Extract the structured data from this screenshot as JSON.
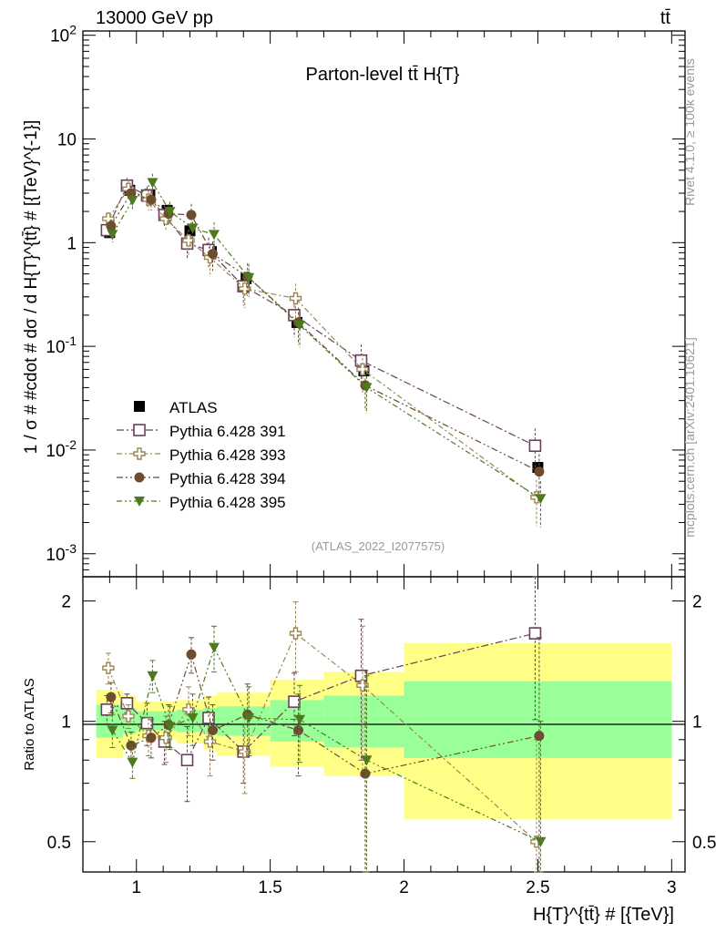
{
  "header": {
    "left": "13000 GeV pp",
    "right": "tt̄"
  },
  "side_labels": {
    "rivet": "Rivet 4.1.0, ≥ 100k events",
    "mcplots": "mcplots.cern.ch [arXiv:2401.10621]"
  },
  "chart_data": {
    "type": "scatter",
    "title": "Parton-level tt̄  H{T}",
    "analysis_tag": "(ATLAS_2022_I2077575)",
    "xlabel": "H{T}^{tt̄} # [{TeV}]",
    "ylabel": "1 / σ # #cdot # dσ / d H{T}^{tt̄} # [{TeV}^{-1}]",
    "ratio_ylabel": "Ratio to ATLAS",
    "xlim": [
      0.8,
      3.05
    ],
    "ylim_main": [
      0.0006,
      110
    ],
    "ylim_ratio": [
      0.42,
      2.3
    ],
    "x_ticks": [
      "1",
      "1.5",
      "2",
      "2.5",
      "3"
    ],
    "y_ticks_main": [
      "10^-3",
      "10^-2",
      "10^-1",
      "1",
      "10",
      "10^2"
    ],
    "y_ticks_ratio": [
      "0.5",
      "1",
      "2"
    ],
    "bins": [
      [
        0.85,
        0.95
      ],
      [
        0.95,
        1.0
      ],
      [
        1.0,
        1.1
      ],
      [
        1.1,
        1.15
      ],
      [
        1.15,
        1.25
      ],
      [
        1.25,
        1.3
      ],
      [
        1.3,
        1.5
      ],
      [
        1.5,
        1.7
      ],
      [
        1.7,
        2.0
      ],
      [
        2.0,
        3.0
      ]
    ],
    "data": {
      "name": "ATLAS",
      "x": [
        0.9,
        0.975,
        1.05,
        1.115,
        1.2,
        1.28,
        1.41,
        1.6,
        1.85,
        2.5
      ],
      "values": [
        1.25,
        3.2,
        2.9,
        2.05,
        1.3,
        0.82,
        0.45,
        0.17,
        0.058,
        0.0068
      ],
      "band_stat_lo": [
        0.91,
        0.93,
        0.95,
        0.95,
        0.94,
        0.93,
        0.92,
        0.89,
        0.86,
        0.81
      ],
      "band_stat_hi": [
        1.1,
        1.08,
        1.06,
        1.06,
        1.07,
        1.08,
        1.09,
        1.13,
        1.16,
        1.26
      ],
      "band_tot_lo": [
        0.81,
        0.86,
        0.9,
        0.9,
        0.88,
        0.85,
        0.82,
        0.77,
        0.73,
        0.57
      ],
      "band_tot_hi": [
        1.2,
        1.16,
        1.12,
        1.12,
        1.13,
        1.16,
        1.18,
        1.27,
        1.33,
        1.57
      ]
    },
    "series": [
      {
        "name": "Pythia 6.428 391",
        "color": "#6b3e5e",
        "marker": "open-square",
        "values": [
          1.32,
          3.55,
          2.85,
          1.85,
          0.98,
          0.85,
          0.38,
          0.2,
          0.073,
          0.011
        ],
        "ratio": [
          1.07,
          1.11,
          0.99,
          0.89,
          0.8,
          1.02,
          0.84,
          1.12,
          1.3,
          1.66
        ],
        "ratio_err": [
          0.09,
          0.06,
          0.12,
          0.11,
          0.17,
          0.13,
          0.14,
          0.2,
          0.5,
          0.65
        ]
      },
      {
        "name": "Pythia 6.428 393",
        "color": "#9a8654",
        "marker": "open-cross",
        "values": [
          1.7,
          3.3,
          2.6,
          1.7,
          1.05,
          0.72,
          0.36,
          0.29,
          0.06,
          0.0035
        ],
        "ratio": [
          1.36,
          1.03,
          0.92,
          0.91,
          1.07,
          0.89,
          0.84,
          1.66,
          1.23,
          0.5
        ],
        "ratio_err": [
          0.12,
          0.07,
          0.1,
          0.12,
          0.15,
          0.16,
          0.18,
          0.33,
          0.5,
          0.4
        ]
      },
      {
        "name": "Pythia 6.428 394",
        "color": "#6d4c30",
        "marker": "filled-circle",
        "values": [
          1.45,
          3.0,
          2.6,
          1.9,
          1.85,
          0.78,
          0.47,
          0.17,
          0.042,
          0.0062
        ],
        "ratio": [
          1.15,
          0.87,
          0.91,
          0.98,
          1.47,
          0.95,
          1.04,
          0.95,
          0.74,
          0.92
        ],
        "ratio_err": [
          0.1,
          0.07,
          0.1,
          0.12,
          0.15,
          0.15,
          0.2,
          0.22,
          0.6,
          0.7
        ]
      },
      {
        "name": "Pythia 6.428 395",
        "color": "#4d7a1e",
        "marker": "filled-triangle-down",
        "values": [
          1.2,
          2.55,
          3.8,
          2.0,
          1.38,
          1.2,
          0.46,
          0.16,
          0.04,
          0.0034
        ],
        "ratio": [
          0.95,
          0.79,
          1.3,
          0.97,
          1.02,
          1.53,
          1.02,
          1.01,
          0.8,
          0.5
        ],
        "ratio_err": [
          0.09,
          0.07,
          0.12,
          0.12,
          0.15,
          0.2,
          0.2,
          0.22,
          0.5,
          0.5
        ]
      }
    ],
    "legend_position": "center-left"
  }
}
